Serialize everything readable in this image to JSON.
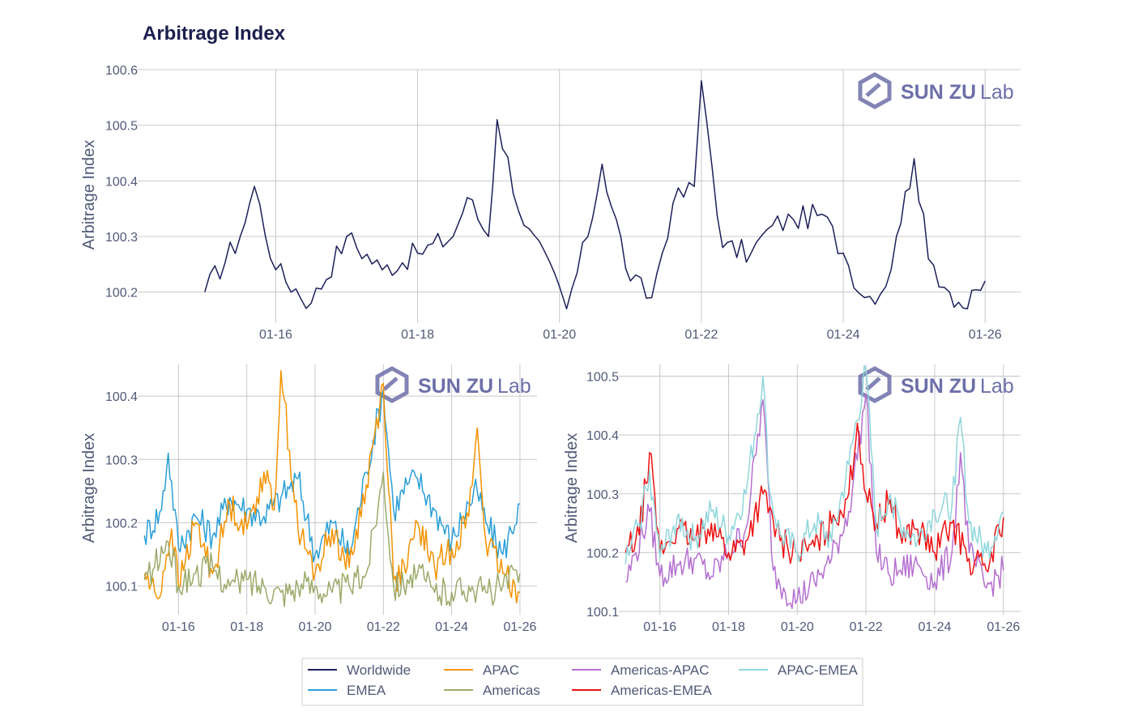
{
  "title": "Arbitrage Index",
  "watermark": {
    "brand": "SUN ZU",
    "suffix": "Lab",
    "icon": "sunzu-logo-icon",
    "color": "#6c6fa8"
  },
  "colors": {
    "Worldwide": "#1c1f5a",
    "EMEA": "#2a9fd6",
    "APAC": "#f39200",
    "Americas": "#9caa6a",
    "Americas-APAC": "#b56fd0",
    "Americas-EMEA": "#ee1111",
    "APAC-EMEA": "#8fd6dc"
  },
  "legend": [
    "Worldwide",
    "APAC",
    "Americas-APAC",
    "APAC-EMEA",
    "EMEA",
    "Americas",
    "Americas-EMEA"
  ],
  "chart_data": [
    {
      "type": "line",
      "ylabel": "Arbitrage Index",
      "x_ticks": [
        "01-16",
        "01-18",
        "01-20",
        "01-22",
        "01-24",
        "01-26"
      ],
      "x_tick_days": [
        16,
        18,
        20,
        22,
        24,
        26
      ],
      "xlim": [
        14.1,
        26.5
      ],
      "y_ticks": [
        "100.2",
        "100.3",
        "100.4",
        "100.5",
        "100.6"
      ],
      "ylim": [
        100.15,
        100.6
      ],
      "series": [
        {
          "name": "Worldwide",
          "x": [
            15.0,
            15.5,
            15.7,
            16.0,
            16.5,
            17.0,
            17.5,
            18.0,
            18.5,
            18.7,
            19.0,
            19.12,
            19.5,
            20.0,
            20.1,
            20.4,
            20.6,
            21.0,
            21.3,
            21.6,
            21.9,
            22.0,
            22.3,
            22.7,
            23.0,
            23.3,
            23.7,
            24.0,
            24.3,
            24.6,
            24.75,
            25.0,
            25.2,
            25.5,
            25.75,
            26.0
          ],
          "y": [
            100.2,
            100.3,
            100.39,
            100.24,
            100.18,
            100.3,
            100.24,
            100.27,
            100.3,
            100.37,
            100.3,
            100.51,
            100.32,
            100.21,
            100.17,
            100.3,
            100.43,
            100.22,
            100.19,
            100.36,
            100.39,
            100.58,
            100.28,
            100.27,
            100.32,
            100.33,
            100.34,
            100.27,
            100.19,
            100.21,
            100.3,
            100.44,
            100.26,
            100.2,
            100.17,
            100.22
          ]
        }
      ]
    },
    {
      "type": "line",
      "ylabel": "Arbitrage Index",
      "x_ticks": [
        "01-16",
        "01-18",
        "01-20",
        "01-22",
        "01-24",
        "01-26"
      ],
      "x_tick_days": [
        16,
        18,
        20,
        22,
        24,
        26
      ],
      "xlim": [
        14.9,
        26.5
      ],
      "y_ticks": [
        "100.1",
        "100.2",
        "100.3",
        "100.4"
      ],
      "ylim": [
        100.06,
        100.45
      ],
      "series": [
        {
          "name": "EMEA",
          "x": [
            15.0,
            15.5,
            15.7,
            16.0,
            16.5,
            17.0,
            17.5,
            18.0,
            18.5,
            19.0,
            19.5,
            20.0,
            20.5,
            21.0,
            21.5,
            22.0,
            22.3,
            22.7,
            23.0,
            23.5,
            24.0,
            24.5,
            24.75,
            25.0,
            25.5,
            26.0
          ],
          "y": [
            100.18,
            100.22,
            100.31,
            100.16,
            100.21,
            100.18,
            100.24,
            100.22,
            100.21,
            100.24,
            100.27,
            100.15,
            100.2,
            100.15,
            100.28,
            100.41,
            100.22,
            100.26,
            100.27,
            100.22,
            100.17,
            100.23,
            100.25,
            100.2,
            100.15,
            100.23
          ]
        },
        {
          "name": "APAC",
          "x": [
            15.0,
            15.4,
            15.8,
            16.0,
            16.5,
            17.0,
            17.5,
            18.0,
            18.5,
            18.8,
            19.0,
            19.5,
            20.0,
            20.5,
            21.0,
            21.5,
            22.0,
            22.3,
            22.7,
            23.0,
            23.5,
            24.0,
            24.5,
            24.75,
            25.0,
            25.5,
            26.0
          ],
          "y": [
            100.12,
            100.08,
            100.19,
            100.1,
            100.2,
            100.12,
            100.23,
            100.19,
            100.28,
            100.22,
            100.44,
            100.19,
            100.12,
            100.19,
            100.13,
            100.26,
            100.42,
            100.11,
            100.13,
            100.2,
            100.13,
            100.16,
            100.21,
            100.35,
            100.17,
            100.12,
            100.09
          ]
        },
        {
          "name": "Americas",
          "x": [
            15.0,
            15.3,
            15.7,
            16.0,
            16.5,
            17.0,
            17.5,
            18.0,
            18.5,
            19.0,
            19.5,
            20.0,
            20.5,
            21.0,
            21.5,
            22.0,
            22.3,
            22.7,
            23.0,
            23.5,
            24.0,
            24.5,
            25.0,
            25.5,
            26.0
          ],
          "y": [
            100.11,
            100.13,
            100.17,
            100.1,
            100.12,
            100.13,
            100.1,
            100.11,
            100.1,
            100.09,
            100.1,
            100.1,
            100.09,
            100.1,
            100.12,
            100.28,
            100.1,
            100.11,
            100.12,
            100.09,
            100.09,
            100.1,
            100.09,
            100.1,
            100.12
          ]
        }
      ]
    },
    {
      "type": "line",
      "ylabel": "Arbitrage Index",
      "x_ticks": [
        "01-16",
        "01-18",
        "01-20",
        "01-22",
        "01-24",
        "01-26"
      ],
      "x_tick_days": [
        16,
        18,
        20,
        22,
        24,
        26
      ],
      "xlim": [
        14.9,
        26.5
      ],
      "y_ticks": [
        "100.1",
        "100.2",
        "100.3",
        "100.4",
        "100.5"
      ],
      "ylim": [
        100.1,
        100.52
      ],
      "series": [
        {
          "name": "Americas-APAC",
          "x": [
            15.0,
            15.3,
            15.7,
            16.0,
            16.5,
            17.0,
            17.5,
            18.0,
            18.5,
            19.0,
            19.3,
            19.6,
            20.0,
            20.5,
            21.0,
            21.5,
            22.0,
            22.3,
            22.7,
            23.0,
            23.5,
            24.0,
            24.5,
            24.75,
            25.0,
            25.5,
            26.0
          ],
          "y": [
            100.15,
            100.2,
            100.27,
            100.16,
            100.18,
            100.19,
            100.16,
            100.2,
            100.24,
            100.46,
            100.17,
            100.14,
            100.12,
            100.15,
            100.19,
            100.27,
            100.47,
            100.2,
            100.16,
            100.17,
            100.18,
            100.15,
            100.2,
            100.37,
            100.2,
            100.14,
            100.17
          ]
        },
        {
          "name": "Americas-EMEA",
          "x": [
            15.0,
            15.4,
            15.7,
            16.0,
            16.5,
            17.0,
            17.5,
            18.0,
            18.5,
            19.0,
            19.5,
            20.0,
            20.5,
            21.0,
            21.5,
            21.75,
            22.0,
            22.3,
            22.7,
            23.0,
            23.5,
            24.0,
            24.5,
            25.0,
            25.5,
            26.0
          ],
          "y": [
            100.2,
            100.23,
            100.37,
            100.2,
            100.24,
            100.22,
            100.25,
            100.2,
            100.22,
            100.3,
            100.22,
            100.2,
            100.21,
            100.25,
            100.3,
            100.42,
            100.3,
            100.25,
            100.29,
            100.23,
            100.24,
            100.2,
            100.25,
            100.19,
            100.17,
            100.26
          ]
        },
        {
          "name": "APAC-EMEA",
          "x": [
            15.0,
            15.4,
            15.7,
            16.0,
            16.5,
            17.0,
            17.5,
            18.0,
            18.5,
            19.0,
            19.2,
            19.5,
            20.0,
            20.5,
            21.0,
            21.5,
            22.0,
            22.3,
            22.7,
            23.0,
            23.5,
            24.0,
            24.5,
            24.75,
            25.0,
            25.5,
            26.0
          ],
          "y": [
            100.18,
            100.25,
            100.34,
            100.19,
            100.26,
            100.22,
            100.27,
            100.23,
            100.3,
            100.5,
            100.3,
            100.23,
            100.2,
            100.25,
            100.22,
            100.35,
            100.51,
            100.24,
            100.3,
            100.25,
            100.22,
            100.27,
            100.28,
            100.43,
            100.25,
            100.2,
            100.27
          ]
        }
      ]
    }
  ]
}
